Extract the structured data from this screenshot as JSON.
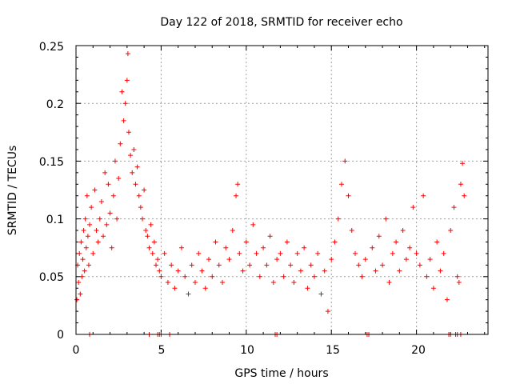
{
  "chart_data": {
    "type": "scatter",
    "title": "Day 122 of 2018, SRMTID for receiver echo",
    "xlabel": "GPS time / hours",
    "ylabel": "SRMTID / TECUs",
    "xlim": [
      0,
      24.2
    ],
    "ylim": [
      0,
      0.25
    ],
    "xticks": [
      "0",
      "5",
      "10",
      "15",
      "20"
    ],
    "yticks": [
      "0",
      "0.05",
      "0.1",
      "0.15",
      "0.2",
      "0.25"
    ],
    "grid": true,
    "marker": "plus",
    "color": "#ff0000",
    "series": [
      {
        "name": "SRMTID",
        "points": [
          [
            0.05,
            0.03
          ],
          [
            0.1,
            0.06
          ],
          [
            0.15,
            0.045
          ],
          [
            0.2,
            0.07
          ],
          [
            0.25,
            0.035
          ],
          [
            0.3,
            0.08
          ],
          [
            0.35,
            0.05
          ],
          [
            0.4,
            0.065
          ],
          [
            0.45,
            0.09
          ],
          [
            0.5,
            0.055
          ],
          [
            0.55,
            0.1
          ],
          [
            0.6,
            0.075
          ],
          [
            0.65,
            0.12
          ],
          [
            0.7,
            0.085
          ],
          [
            0.75,
            0.06
          ],
          [
            0.8,
            0.095
          ],
          [
            0.9,
            0.11
          ],
          [
            1.0,
            0.07
          ],
          [
            1.1,
            0.125
          ],
          [
            1.2,
            0.09
          ],
          [
            1.3,
            0.08
          ],
          [
            1.4,
            0.1
          ],
          [
            1.5,
            0.115
          ],
          [
            1.6,
            0.085
          ],
          [
            1.7,
            0.14
          ],
          [
            1.8,
            0.095
          ],
          [
            1.9,
            0.13
          ],
          [
            2.0,
            0.105
          ],
          [
            2.1,
            0.075
          ],
          [
            2.2,
            0.12
          ],
          [
            2.3,
            0.15
          ],
          [
            2.4,
            0.1
          ],
          [
            2.5,
            0.135
          ],
          [
            2.6,
            0.165
          ],
          [
            2.7,
            0.21
          ],
          [
            2.8,
            0.185
          ],
          [
            2.9,
            0.2
          ],
          [
            3.0,
            0.22
          ],
          [
            3.05,
            0.243
          ],
          [
            3.1,
            0.175
          ],
          [
            3.2,
            0.155
          ],
          [
            3.3,
            0.14
          ],
          [
            3.4,
            0.16
          ],
          [
            3.5,
            0.13
          ],
          [
            3.6,
            0.145
          ],
          [
            3.7,
            0.12
          ],
          [
            3.8,
            0.11
          ],
          [
            3.9,
            0.1
          ],
          [
            4.0,
            0.125
          ],
          [
            4.1,
            0.09
          ],
          [
            4.2,
            0.085
          ],
          [
            4.3,
            0.075
          ],
          [
            4.4,
            0.095
          ],
          [
            4.5,
            0.07
          ],
          [
            4.6,
            0.08
          ],
          [
            4.7,
            0.06
          ],
          [
            4.8,
            0.065
          ],
          [
            4.9,
            0.055
          ],
          [
            5.0,
            0.05
          ],
          [
            5.2,
            0.07
          ],
          [
            5.4,
            0.045
          ],
          [
            5.6,
            0.06
          ],
          [
            5.8,
            0.04
          ],
          [
            6.0,
            0.055
          ],
          [
            6.2,
            0.075
          ],
          [
            6.4,
            0.05
          ],
          [
            6.6,
            0.035
          ],
          [
            6.8,
            0.06
          ],
          [
            7.0,
            0.045
          ],
          [
            7.2,
            0.07
          ],
          [
            7.4,
            0.055
          ],
          [
            7.6,
            0.04
          ],
          [
            7.8,
            0.065
          ],
          [
            8.0,
            0.05
          ],
          [
            8.2,
            0.08
          ],
          [
            8.4,
            0.06
          ],
          [
            8.6,
            0.045
          ],
          [
            8.8,
            0.075
          ],
          [
            9.0,
            0.065
          ],
          [
            9.2,
            0.09
          ],
          [
            9.4,
            0.12
          ],
          [
            9.5,
            0.13
          ],
          [
            9.6,
            0.07
          ],
          [
            9.8,
            0.055
          ],
          [
            10.0,
            0.08
          ],
          [
            10.2,
            0.06
          ],
          [
            10.4,
            0.095
          ],
          [
            10.6,
            0.07
          ],
          [
            10.8,
            0.05
          ],
          [
            11.0,
            0.075
          ],
          [
            11.2,
            0.06
          ],
          [
            11.4,
            0.085
          ],
          [
            11.6,
            0.045
          ],
          [
            11.8,
            0.065
          ],
          [
            12.0,
            0.07
          ],
          [
            12.2,
            0.05
          ],
          [
            12.4,
            0.08
          ],
          [
            12.6,
            0.06
          ],
          [
            12.8,
            0.045
          ],
          [
            13.0,
            0.07
          ],
          [
            13.2,
            0.055
          ],
          [
            13.4,
            0.075
          ],
          [
            13.6,
            0.04
          ],
          [
            13.8,
            0.06
          ],
          [
            14.0,
            0.05
          ],
          [
            14.2,
            0.07
          ],
          [
            14.4,
            0.035
          ],
          [
            14.6,
            0.055
          ],
          [
            14.8,
            0.02
          ],
          [
            15.0,
            0.065
          ],
          [
            15.2,
            0.08
          ],
          [
            15.4,
            0.1
          ],
          [
            15.6,
            0.13
          ],
          [
            15.8,
            0.15
          ],
          [
            16.0,
            0.12
          ],
          [
            16.2,
            0.09
          ],
          [
            16.4,
            0.07
          ],
          [
            16.6,
            0.06
          ],
          [
            16.8,
            0.05
          ],
          [
            17.0,
            0.065
          ],
          [
            17.4,
            0.075
          ],
          [
            17.6,
            0.055
          ],
          [
            17.8,
            0.085
          ],
          [
            18.0,
            0.06
          ],
          [
            18.2,
            0.1
          ],
          [
            18.4,
            0.045
          ],
          [
            18.6,
            0.07
          ],
          [
            18.8,
            0.08
          ],
          [
            19.0,
            0.055
          ],
          [
            19.2,
            0.09
          ],
          [
            19.4,
            0.065
          ],
          [
            19.6,
            0.075
          ],
          [
            19.8,
            0.11
          ],
          [
            20.0,
            0.07
          ],
          [
            20.2,
            0.06
          ],
          [
            20.4,
            0.12
          ],
          [
            20.6,
            0.05
          ],
          [
            20.8,
            0.065
          ],
          [
            21.0,
            0.04
          ],
          [
            21.2,
            0.08
          ],
          [
            21.4,
            0.055
          ],
          [
            21.6,
            0.07
          ],
          [
            21.8,
            0.03
          ],
          [
            22.0,
            0.09
          ],
          [
            22.2,
            0.11
          ],
          [
            22.4,
            0.05
          ],
          [
            22.6,
            0.13
          ],
          [
            22.7,
            0.148
          ],
          [
            22.8,
            0.12
          ],
          [
            22.5,
            0.045
          ],
          [
            0.8,
            0.0
          ],
          [
            4.3,
            0.0
          ],
          [
            4.8,
            0.0
          ],
          [
            4.9,
            0.0
          ],
          [
            5.0,
            0.0
          ],
          [
            5.5,
            0.0
          ],
          [
            11.7,
            0.0
          ],
          [
            11.8,
            0.0
          ],
          [
            17.1,
            0.0
          ],
          [
            17.2,
            0.0
          ],
          [
            21.9,
            0.0
          ],
          [
            22.0,
            0.0
          ],
          [
            22.3,
            0.0
          ],
          [
            22.4,
            0.0
          ],
          [
            22.6,
            0.0
          ]
        ]
      }
    ]
  }
}
